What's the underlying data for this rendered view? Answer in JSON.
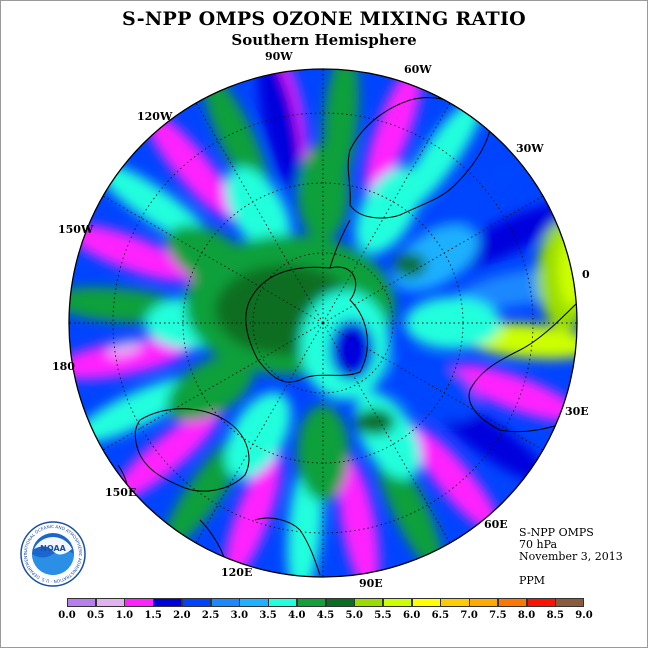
{
  "title": "S-NPP OMPS OZONE MIXING RATIO",
  "subtitle": "Southern Hemisphere",
  "longitude_labels": {
    "lon_90w": "90W",
    "lon_60w": "60W",
    "lon_120w": "120W",
    "lon_30w": "30W",
    "lon_150w": "150W",
    "lon_0": "0",
    "lon_180": "180",
    "lon_30e": "30E",
    "lon_150e": "150E",
    "lon_60e": "60E",
    "lon_120e": "120E",
    "lon_90e": "90E"
  },
  "info": {
    "instrument": "S-NPP OMPS",
    "pressure": "70 hPa",
    "date": "November 3, 2013",
    "units": "PPM"
  },
  "logo": {
    "text": "NOAA",
    "ring_text": "NATIONAL OCEANIC AND ATMOSPHERIC ADMINISTRATION · U.S. DEPARTMENT OF COMMERCE"
  },
  "colorbar": {
    "ticks": [
      "0.0",
      "0.5",
      "1.0",
      "1.5",
      "2.0",
      "2.5",
      "3.0",
      "3.5",
      "4.0",
      "4.5",
      "5.0",
      "5.5",
      "6.0",
      "6.5",
      "7.0",
      "7.5",
      "8.0",
      "8.5",
      "9.0"
    ],
    "colors": [
      "#b77fee",
      "#e0b3ee",
      "#ff22ff",
      "#0000dd",
      "#0044ff",
      "#1a88ff",
      "#1fb0ff",
      "#22ffdd",
      "#11a03a",
      "#0a6e22",
      "#99dd00",
      "#ccff00",
      "#ffff00",
      "#ffcc00",
      "#ffaa00",
      "#ff7700",
      "#ff1100",
      "#8b5a3c"
    ]
  },
  "map_palette": {
    "magenta": "#ff22ff",
    "dark_blue": "#0000dd",
    "blue": "#0044ff",
    "mid_blue": "#1a88ff",
    "light_blue": "#1fb0ff",
    "cyan": "#22ffdd",
    "green": "#11a03a",
    "dark_green": "#0a6e22",
    "yellow_green": "#ccff00",
    "lime": "#99dd00",
    "lilac": "#e0b3ee"
  }
}
